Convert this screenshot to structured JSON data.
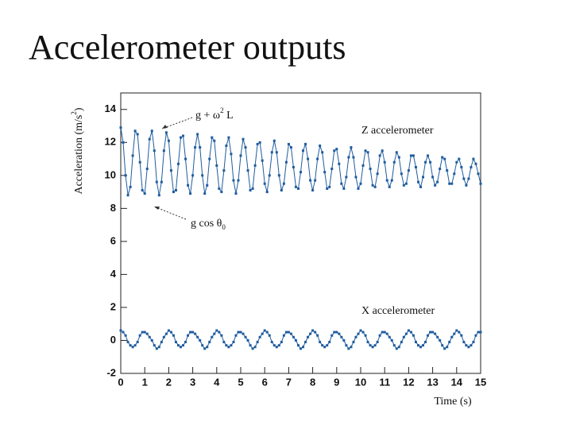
{
  "title": "Accelerometer outputs",
  "chart_data": {
    "type": "line",
    "y_label_parts": [
      "Acceleration (m/s",
      "2",
      ")"
    ],
    "x_label": "Time (s)",
    "annotations": [
      {
        "parts": [
          "g + ω",
          "2",
          " L"
        ]
      },
      {
        "parts": [
          "g cos θ",
          "0"
        ]
      }
    ],
    "xlim": [
      0,
      15
    ],
    "ylim": [
      -2,
      15
    ],
    "xticks": [
      0,
      1,
      2,
      3,
      4,
      5,
      6,
      7,
      8,
      9,
      10,
      11,
      12,
      13,
      14,
      15
    ],
    "yticks": [
      -2,
      0,
      2,
      4,
      6,
      8,
      10,
      12,
      14
    ],
    "x": [
      0,
      0.1,
      0.2,
      0.3,
      0.4,
      0.5,
      0.6,
      0.7,
      0.8,
      0.9,
      1,
      1.1,
      1.2,
      1.3,
      1.4,
      1.5,
      1.6,
      1.7,
      1.8,
      1.9,
      2,
      2.1,
      2.2,
      2.3,
      2.4,
      2.5,
      2.6,
      2.7,
      2.8,
      2.9,
      3,
      3.1,
      3.2,
      3.3,
      3.4,
      3.5,
      3.6,
      3.7,
      3.8,
      3.9,
      4,
      4.1,
      4.2,
      4.3,
      4.4,
      4.5,
      4.6,
      4.7,
      4.8,
      4.9,
      5,
      5.1,
      5.2,
      5.3,
      5.4,
      5.5,
      5.6,
      5.7,
      5.8,
      5.9,
      6,
      6.1,
      6.2,
      6.3,
      6.4,
      6.5,
      6.6,
      6.7,
      6.8,
      6.9,
      7,
      7.1,
      7.2,
      7.3,
      7.4,
      7.5,
      7.6,
      7.7,
      7.8,
      7.9,
      8,
      8.1,
      8.2,
      8.3,
      8.4,
      8.5,
      8.6,
      8.7,
      8.8,
      8.9,
      9,
      9.1,
      9.2,
      9.3,
      9.4,
      9.5,
      9.6,
      9.7,
      9.8,
      9.9,
      10,
      10.1,
      10.2,
      10.3,
      10.4,
      10.5,
      10.6,
      10.7,
      10.8,
      10.9,
      11,
      11.1,
      11.2,
      11.3,
      11.4,
      11.5,
      11.6,
      11.7,
      11.8,
      11.9,
      12,
      12.1,
      12.2,
      12.3,
      12.4,
      12.5,
      12.6,
      12.7,
      12.8,
      12.9,
      13,
      13.1,
      13.2,
      13.3,
      13.4,
      13.5,
      13.6,
      13.7,
      13.8,
      13.9,
      14,
      14.1,
      14.2,
      14.3,
      14.4,
      14.5,
      14.6,
      14.7,
      14.8,
      14.9,
      15
    ],
    "series": [
      {
        "name": "Z accelerometer",
        "color": "#1f5c9e",
        "values": [
          12.9,
          12.0,
          10.0,
          8.8,
          9.3,
          11.2,
          12.7,
          12.5,
          10.8,
          9.1,
          8.9,
          10.4,
          12.2,
          12.7,
          11.5,
          9.6,
          8.8,
          9.6,
          11.5,
          12.6,
          12.1,
          10.3,
          9.0,
          9.1,
          10.7,
          12.3,
          12.4,
          11.0,
          9.4,
          8.9,
          10.0,
          11.7,
          12.5,
          11.7,
          10.0,
          8.9,
          9.4,
          11.0,
          12.3,
          12.1,
          10.6,
          9.2,
          9.0,
          10.3,
          11.8,
          12.3,
          11.3,
          9.7,
          8.9,
          9.7,
          11.2,
          12.2,
          11.7,
          10.3,
          9.1,
          9.2,
          10.6,
          11.9,
          12.0,
          10.9,
          9.5,
          9.0,
          10.0,
          11.4,
          12.1,
          11.4,
          10.0,
          9.1,
          9.5,
          10.8,
          11.9,
          11.7,
          10.5,
          9.3,
          9.2,
          10.2,
          11.5,
          11.9,
          11.0,
          9.7,
          9.1,
          9.7,
          11.0,
          11.8,
          11.4,
          10.2,
          9.2,
          9.3,
          10.4,
          11.5,
          11.6,
          10.7,
          9.5,
          9.2,
          9.9,
          11.1,
          11.7,
          11.1,
          9.9,
          9.2,
          9.5,
          10.6,
          11.5,
          11.4,
          10.4,
          9.4,
          9.3,
          10.1,
          11.2,
          11.5,
          10.8,
          9.7,
          9.3,
          9.7,
          10.8,
          11.4,
          11.1,
          10.1,
          9.4,
          9.5,
          10.3,
          11.2,
          11.2,
          10.5,
          9.6,
          9.3,
          9.9,
          10.8,
          11.2,
          10.8,
          9.9,
          9.4,
          9.6,
          10.4,
          11.1,
          11.0,
          10.3,
          9.5,
          9.5,
          10.1,
          10.8,
          11.0,
          10.5,
          9.8,
          9.4,
          9.8,
          10.5,
          11.0,
          10.7,
          10.1,
          9.5
        ]
      },
      {
        "name": "X accelerometer",
        "color": "#1f5c9e",
        "values": [
          0.6,
          0.5,
          0.3,
          -0.1,
          -0.3,
          -0.4,
          -0.3,
          -0.1,
          0.3,
          0.5,
          0.5,
          0.4,
          0.2,
          0,
          -0.3,
          -0.5,
          -0.4,
          -0.1,
          0.2,
          0.4,
          0.6,
          0.5,
          0.3,
          -0.1,
          -0.3,
          -0.4,
          -0.3,
          -0.1,
          0.3,
          0.5,
          0.5,
          0.4,
          0.2,
          0,
          -0.3,
          -0.5,
          -0.4,
          -0.1,
          0.2,
          0.4,
          0.6,
          0.5,
          0.3,
          -0.1,
          -0.3,
          -0.4,
          -0.3,
          -0.1,
          0.3,
          0.5,
          0.5,
          0.4,
          0.2,
          0,
          -0.3,
          -0.5,
          -0.4,
          -0.1,
          0.2,
          0.4,
          0.6,
          0.5,
          0.3,
          -0.1,
          -0.3,
          -0.4,
          -0.3,
          -0.1,
          0.3,
          0.5,
          0.5,
          0.4,
          0.2,
          0,
          -0.3,
          -0.5,
          -0.4,
          -0.1,
          0.2,
          0.4,
          0.6,
          0.5,
          0.3,
          -0.1,
          -0.3,
          -0.4,
          -0.3,
          -0.1,
          0.3,
          0.5,
          0.5,
          0.4,
          0.2,
          0,
          -0.3,
          -0.5,
          -0.4,
          -0.1,
          0.2,
          0.4,
          0.6,
          0.5,
          0.3,
          -0.1,
          -0.3,
          -0.4,
          -0.3,
          -0.1,
          0.3,
          0.5,
          0.5,
          0.4,
          0.2,
          0,
          -0.3,
          -0.5,
          -0.4,
          -0.1,
          0.2,
          0.4,
          0.6,
          0.5,
          0.3,
          -0.1,
          -0.3,
          -0.4,
          -0.3,
          -0.1,
          0.3,
          0.5,
          0.5,
          0.4,
          0.2,
          0,
          -0.3,
          -0.5,
          -0.4,
          -0.1,
          0.2,
          0.4,
          0.6,
          0.5,
          0.3,
          -0.1,
          -0.3,
          -0.4,
          -0.3,
          -0.1,
          0.3,
          0.5,
          0.5
        ]
      }
    ]
  }
}
